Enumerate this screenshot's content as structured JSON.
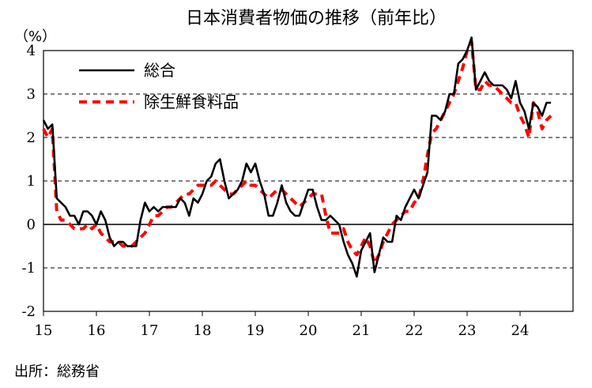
{
  "chart_data": {
    "type": "line",
    "title": "日本消費者物価の推移（前年比）",
    "unit_label": "（%）",
    "source": "出所：総務省",
    "ylim": [
      -2,
      4
    ],
    "yticks": [
      "4",
      "3",
      "2",
      "1",
      "0",
      "-1",
      "-2"
    ],
    "xticks": [
      "15",
      "16",
      "17",
      "18",
      "19",
      "20",
      "21",
      "22",
      "23",
      "24"
    ],
    "x_start": 2015.0,
    "x_end": 2025.0,
    "legend_placement": "top-left",
    "grid": true,
    "series": [
      {
        "name": "総合",
        "color": "#000000",
        "values": [
          2.4,
          2.2,
          2.3,
          0.6,
          0.5,
          0.4,
          0.2,
          0.2,
          0.0,
          0.3,
          0.3,
          0.2,
          0.0,
          0.3,
          0.1,
          -0.3,
          -0.5,
          -0.4,
          -0.4,
          -0.5,
          -0.5,
          -0.5,
          0.1,
          0.5,
          0.3,
          0.4,
          0.3,
          0.4,
          0.4,
          0.4,
          0.4,
          0.6,
          0.5,
          0.2,
          0.6,
          0.5,
          0.7,
          1.0,
          1.1,
          1.4,
          1.5,
          1.0,
          0.6,
          0.7,
          0.8,
          1.0,
          1.4,
          1.2,
          1.4,
          1.0,
          0.7,
          0.2,
          0.2,
          0.5,
          0.9,
          0.5,
          0.3,
          0.2,
          0.2,
          0.5,
          0.8,
          0.8,
          0.4,
          0.1,
          0.1,
          0.2,
          0.1,
          0.0,
          -0.4,
          -0.7,
          -0.9,
          -1.2,
          -0.6,
          -0.4,
          -0.2,
          -1.1,
          -0.7,
          -0.3,
          -0.4,
          -0.4,
          0.2,
          0.1,
          0.4,
          0.6,
          0.8,
          0.6,
          0.9,
          1.2,
          2.5,
          2.5,
          2.4,
          2.6,
          3.0,
          3.0,
          3.7,
          3.8,
          4.0,
          4.3,
          3.1,
          3.3,
          3.5,
          3.3,
          3.2,
          3.2,
          3.2,
          3.1,
          2.9,
          3.3,
          2.8,
          2.6,
          2.2,
          2.8,
          2.7,
          2.5,
          2.8,
          2.8
        ]
      },
      {
        "name": "除生鮮食料品",
        "color": "#ff0000",
        "values": [
          2.2,
          2.0,
          2.2,
          0.3,
          0.1,
          0.1,
          0.0,
          -0.1,
          -0.1,
          -0.1,
          0.0,
          -0.1,
          0.0,
          -0.2,
          -0.3,
          -0.4,
          -0.4,
          -0.4,
          -0.5,
          -0.5,
          -0.5,
          -0.4,
          -0.3,
          -0.2,
          0.0,
          0.2,
          0.2,
          0.3,
          0.4,
          0.4,
          0.5,
          0.6,
          0.7,
          0.7,
          0.8,
          0.9,
          0.9,
          0.9,
          0.9,
          1.0,
          0.9,
          0.8,
          0.7,
          0.7,
          0.8,
          0.9,
          1.0,
          0.9,
          0.9,
          0.8,
          0.7,
          0.6,
          0.7,
          0.8,
          0.8,
          0.7,
          0.6,
          0.5,
          0.4,
          0.5,
          0.6,
          0.7,
          0.7,
          0.7,
          0.2,
          -0.2,
          -0.2,
          -0.2,
          -0.1,
          -0.4,
          -0.6,
          -0.7,
          -0.5,
          -0.3,
          -0.5,
          -0.9,
          -0.7,
          -0.4,
          -0.2,
          0.0,
          0.1,
          0.2,
          0.3,
          0.3,
          0.5,
          0.6,
          1.0,
          1.6,
          2.1,
          2.2,
          2.4,
          2.6,
          2.8,
          3.0,
          3.3,
          3.6,
          4.0,
          4.2,
          3.1,
          3.1,
          3.3,
          3.2,
          3.2,
          3.1,
          3.0,
          2.9,
          2.8,
          2.8,
          2.5,
          2.3,
          2.0,
          2.8,
          2.6,
          2.2,
          2.4,
          2.5
        ]
      }
    ]
  }
}
